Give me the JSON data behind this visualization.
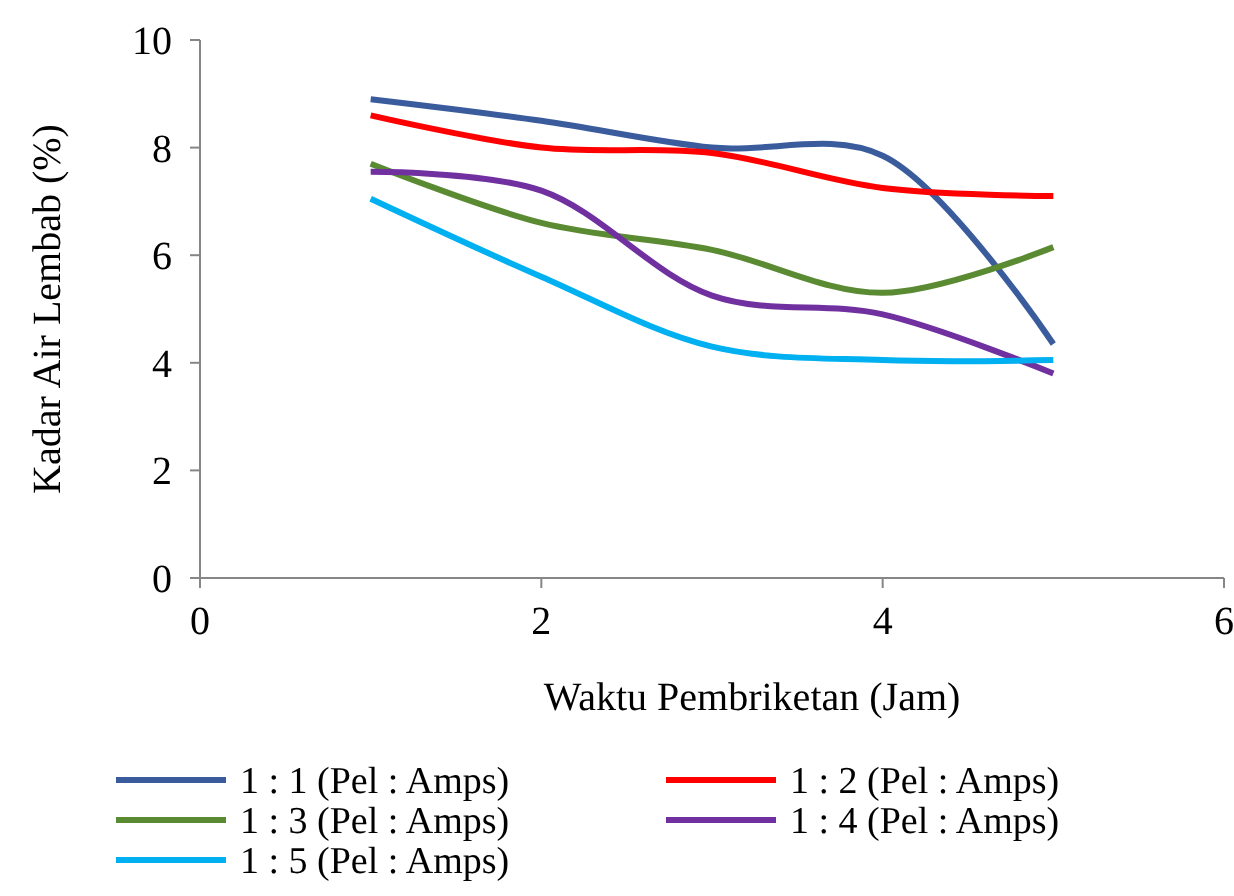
{
  "chart_data": {
    "type": "line",
    "xlabel": "Waktu Pembriketan (Jam)",
    "ylabel": "Kadar Air Lembab (%)",
    "x": [
      1,
      2,
      3,
      4,
      5
    ],
    "xlim": [
      0,
      6
    ],
    "xticks": [
      0,
      2,
      4,
      6
    ],
    "ylim": [
      0,
      10
    ],
    "yticks": [
      0,
      2,
      4,
      6,
      8,
      10
    ],
    "grid": false,
    "legend": "bottom",
    "marker": "none",
    "line_style": "solid",
    "series": [
      {
        "name": "1 : 1 (Pel : Amps)",
        "color": "#3a5c9c",
        "values": [
          8.9,
          8.5,
          8.0,
          7.85,
          4.35
        ]
      },
      {
        "name": "1 : 2 (Pel : Amps)",
        "color": "#ff0000",
        "values": [
          8.6,
          8.0,
          7.9,
          7.25,
          7.1
        ]
      },
      {
        "name": "1 : 3 (Pel : Amps)",
        "color": "#5a8a32",
        "values": [
          7.7,
          6.6,
          6.1,
          5.3,
          6.15
        ]
      },
      {
        "name": "1 : 4 (Pel : Amps)",
        "color": "#7030a0",
        "values": [
          7.55,
          7.2,
          5.25,
          4.9,
          3.8
        ]
      },
      {
        "name": "1 : 5 (Pel : Amps)",
        "color": "#00b0f0",
        "values": [
          7.05,
          5.6,
          4.3,
          4.05,
          4.05
        ]
      }
    ]
  }
}
